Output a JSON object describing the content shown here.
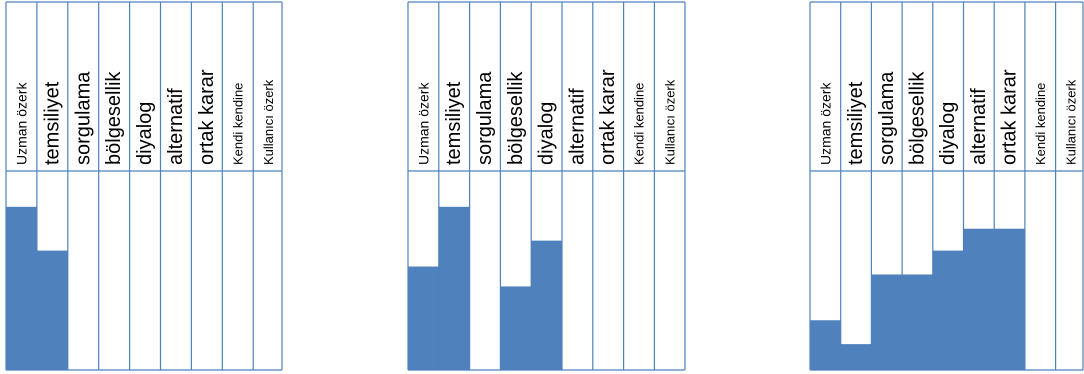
{
  "colors": {
    "fill": "#4f81bd",
    "grid": "#4f81bd",
    "text": "#000000",
    "background": "#ffffff"
  },
  "chart_data": [
    {
      "type": "bar",
      "categories": [
        "Uzman özerk",
        "temsiliyet",
        "sorgulama",
        "bölgesellik",
        "diyalog",
        "alternatif",
        "ortak karar",
        "Kendi kendine",
        "Kullanıcı özerk"
      ],
      "values": [
        82,
        60,
        0,
        0,
        0,
        0,
        0,
        0,
        0
      ],
      "ylim": [
        0,
        100
      ],
      "xlabel": "",
      "ylabel": "",
      "title": ""
    },
    {
      "type": "bar",
      "categories": [
        "Uzman özerk",
        "temsiliyet",
        "sorgulama",
        "bölgesellik",
        "diyalog",
        "alternatif",
        "ortak karar",
        "Kendi kendine",
        "Kullanıcı özerk"
      ],
      "values": [
        52,
        82,
        0,
        42,
        65,
        0,
        0,
        0,
        0
      ],
      "ylim": [
        0,
        100
      ],
      "xlabel": "",
      "ylabel": "",
      "title": ""
    },
    {
      "type": "bar",
      "categories": [
        "Uzman özerk",
        "temsiliyet",
        "sorgulama",
        "bölgesellik",
        "diyalog",
        "alternatif",
        "ortak karar",
        "Kendi kendine",
        "Kullanıcı özerk"
      ],
      "values": [
        25,
        13,
        48,
        48,
        60,
        71,
        71,
        0,
        0
      ],
      "ylim": [
        0,
        100
      ],
      "xlabel": "",
      "ylabel": "",
      "title": ""
    }
  ]
}
